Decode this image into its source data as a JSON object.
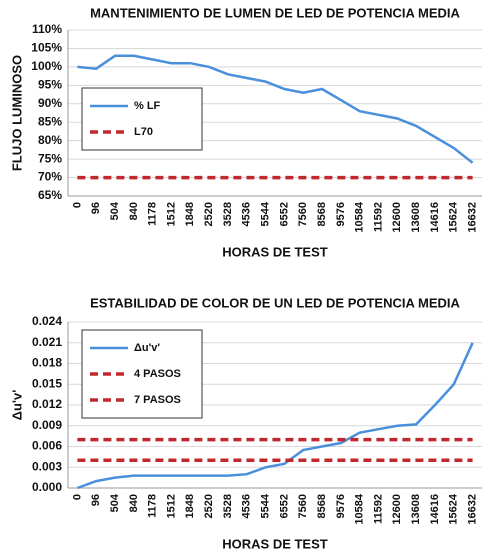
{
  "chart_data": [
    {
      "type": "line",
      "title": "MANTENIMIENTO DE LUMEN DE LED DE POTENCIA MEDIA",
      "xlabel": "HORAS DE TEST",
      "ylabel": "FLUJO LUMINOSO",
      "categories": [
        "0",
        "96",
        "504",
        "840",
        "1178",
        "1512",
        "1848",
        "2520",
        "3528",
        "4536",
        "5544",
        "6552",
        "7560",
        "8568",
        "9576",
        "10584",
        "11592",
        "12600",
        "13608",
        "14616",
        "15624",
        "16632"
      ],
      "series": [
        {
          "name": "% LF",
          "color": "#4a8fdc",
          "dashed": false,
          "values": [
            100,
            99.5,
            103,
            103,
            102,
            101,
            101,
            100,
            98,
            97,
            96,
            94,
            93,
            94,
            91,
            88,
            87,
            86,
            84,
            81,
            78,
            74
          ]
        },
        {
          "name": "L70",
          "color": "#c0282d",
          "dashed": true,
          "values": [
            70,
            70,
            70,
            70,
            70,
            70,
            70,
            70,
            70,
            70,
            70,
            70,
            70,
            70,
            70,
            70,
            70,
            70,
            70,
            70,
            70,
            70
          ]
        }
      ],
      "ylim": [
        65,
        110
      ],
      "yticks": [
        {
          "value": 65,
          "label": "65%"
        },
        {
          "value": 70,
          "label": "70%"
        },
        {
          "value": 75,
          "label": "75%"
        },
        {
          "value": 80,
          "label": "80%"
        },
        {
          "value": 85,
          "label": "85%"
        },
        {
          "value": 90,
          "label": "90%"
        },
        {
          "value": 95,
          "label": "95%"
        },
        {
          "value": 100,
          "label": "100%"
        },
        {
          "value": 105,
          "label": "105%"
        },
        {
          "value": 110,
          "label": "110%"
        }
      ],
      "legend": "center left"
    },
    {
      "type": "line",
      "title": "ESTABILIDAD DE COLOR DE UN LED DE POTENCIA MEDIA",
      "xlabel": "HORAS DE TEST",
      "ylabel": "Δu'v'",
      "categories": [
        "0",
        "96",
        "504",
        "840",
        "1178",
        "1512",
        "1848",
        "2520",
        "3528",
        "4536",
        "5544",
        "6552",
        "7560",
        "8568",
        "9576",
        "10584",
        "11592",
        "12600",
        "13608",
        "14616",
        "15624",
        "16632"
      ],
      "series": [
        {
          "name": "Δu'v'",
          "color": "#4a8fdc",
          "dashed": false,
          "values": [
            0,
            0.001,
            0.0015,
            0.0018,
            0.0018,
            0.0018,
            0.0018,
            0.0018,
            0.0018,
            0.002,
            0.003,
            0.0035,
            0.0055,
            0.006,
            0.0065,
            0.008,
            0.0085,
            0.009,
            0.0092,
            0.012,
            0.015,
            0.021
          ]
        },
        {
          "name": "4 PASOS",
          "color": "#c0282d",
          "dashed": true,
          "values": [
            0.004,
            0.004,
            0.004,
            0.004,
            0.004,
            0.004,
            0.004,
            0.004,
            0.004,
            0.004,
            0.004,
            0.004,
            0.004,
            0.004,
            0.004,
            0.004,
            0.004,
            0.004,
            0.004,
            0.004,
            0.004,
            0.004
          ]
        },
        {
          "name": "7 PASOS",
          "color": "#c0282d",
          "dashed": true,
          "values": [
            0.007,
            0.007,
            0.007,
            0.007,
            0.007,
            0.007,
            0.007,
            0.007,
            0.007,
            0.007,
            0.007,
            0.007,
            0.007,
            0.007,
            0.007,
            0.007,
            0.007,
            0.007,
            0.007,
            0.007,
            0.007,
            0.007
          ]
        }
      ],
      "ylim": [
        0,
        0.024
      ],
      "yticks": [
        {
          "value": 0,
          "label": "0.000"
        },
        0.003,
        0.006,
        0.009,
        0.012,
        0.015,
        0.018,
        0.021,
        0.024
      ],
      "legend": "upper left"
    }
  ]
}
